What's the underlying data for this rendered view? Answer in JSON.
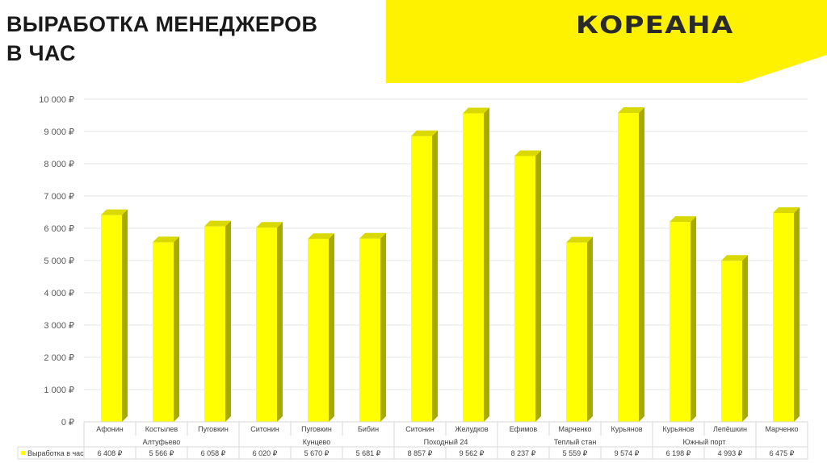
{
  "page": {
    "title": "ВЫРАБОТКА МЕНЕДЖЕРОВ\nВ ЧАС",
    "logo_text": "КОРЕАНА",
    "accent_color": "#fff200"
  },
  "chart_data": {
    "type": "bar",
    "title": "",
    "xlabel": "",
    "ylabel": "",
    "ylim": [
      0,
      10000
    ],
    "y_ticks": [
      0,
      1000,
      2000,
      3000,
      4000,
      5000,
      6000,
      7000,
      8000,
      9000,
      10000
    ],
    "y_tick_labels": [
      "0 ₽",
      "1 000 ₽",
      "2 000 ₽",
      "3 000 ₽",
      "4 000 ₽",
      "5 000 ₽",
      "6 000 ₽",
      "7 000 ₽",
      "8 000 ₽",
      "9 000 ₽",
      "10 000 ₽"
    ],
    "categories": [
      "Афонин",
      "Костылев",
      "Пуговкин",
      "Ситонин",
      "Пуговкин",
      "Бибин",
      "Ситонин",
      "Желудков",
      "Ефимов",
      "Марченко",
      "Курьянов",
      "Курьянов",
      "Лепёшкин",
      "Марченко"
    ],
    "groups": [
      {
        "label": "Алтуфьево",
        "start": 0,
        "end": 2
      },
      {
        "label": "Кунцево",
        "start": 3,
        "end": 5
      },
      {
        "label": "Походный 24",
        "start": 6,
        "end": 7
      },
      {
        "label": "Теплый стан",
        "start": 8,
        "end": 10
      },
      {
        "label": "Южный порт",
        "start": 11,
        "end": 12
      },
      {
        "label": "",
        "start": 13,
        "end": 13
      }
    ],
    "series": [
      {
        "name": "Выработка в час",
        "values": [
          6408,
          5566,
          6058,
          6020,
          5670,
          5681,
          8857,
          9562,
          8237,
          5559,
          9574,
          6198,
          4993,
          6475
        ],
        "value_labels": [
          "6 408 ₽",
          "5 566 ₽",
          "6 058 ₽",
          "6 020 ₽",
          "5 670 ₽",
          "5 681 ₽",
          "8 857 ₽",
          "9 562 ₽",
          "8 237 ₽",
          "5 559 ₽",
          "9 574 ₽",
          "6 198 ₽",
          "4 993 ₽",
          "6 475 ₽"
        ],
        "color": "#ffff00"
      }
    ],
    "grid": true,
    "legend": "data-table"
  }
}
